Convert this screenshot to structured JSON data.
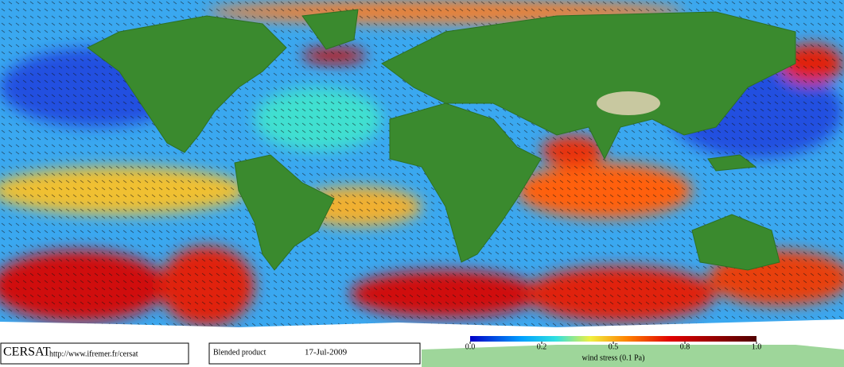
{
  "footer": {
    "source": "CERSAT",
    "url": "http://www.ifremer.fr/cersat",
    "product": "Blended product",
    "date": "17-Jul-2009"
  },
  "colorbar": {
    "label": "wind stress (0.1 Pa)",
    "ticks": [
      {
        "value": 0,
        "label": "0.0"
      },
      0.2,
      0.5,
      0.8,
      {
        "value": 1,
        "label": "1.0"
      }
    ]
  }
}
